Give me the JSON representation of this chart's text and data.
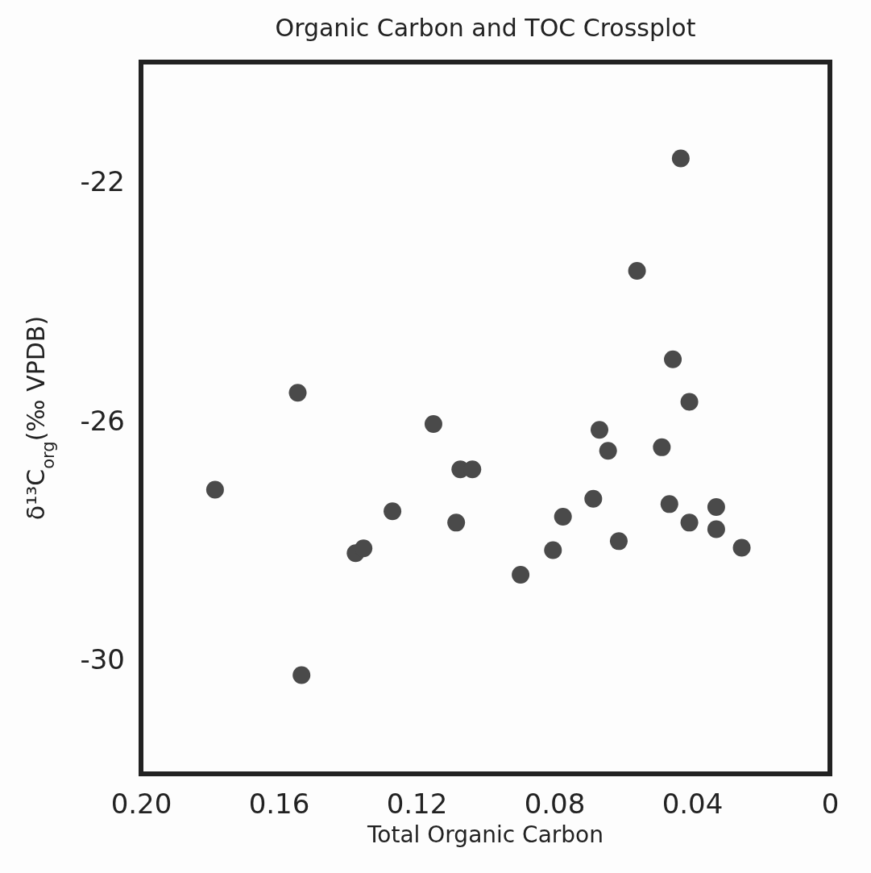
{
  "chart_data": {
    "type": "scatter",
    "title": "Organic Carbon and TOC Crossplot",
    "xlabel": "Total Organic Carbon",
    "ylabel": "δ¹³C$_{org}$(‰ VPDB)",
    "x": [
      0.1785,
      0.1545,
      0.1534,
      0.1377,
      0.1354,
      0.127,
      0.1151,
      0.1085,
      0.1073,
      0.1038,
      0.0898,
      0.0804,
      0.0775,
      0.0687,
      0.0669,
      0.0644,
      0.0613,
      0.056,
      0.0488,
      0.0466,
      0.0456,
      0.0433,
      0.0408,
      0.0408,
      0.033,
      0.033,
      0.0256
    ],
    "series": [
      {
        "color": "#4a4a4a",
        "values": [
          -27.15,
          -25.53,
          -30.25,
          -28.21,
          -28.13,
          -27.51,
          -26.05,
          -27.7,
          -26.81,
          -26.81,
          -28.57,
          -28.16,
          -27.6,
          -27.3,
          -26.15,
          -26.5,
          -28.01,
          -23.49,
          -26.44,
          -27.39,
          -24.97,
          -21.61,
          -25.68,
          -27.7,
          -27.44,
          -27.81,
          -28.12
        ]
      }
    ],
    "xlim": [
      0.2,
      0
    ],
    "xticks": [
      {
        "value": 0.2,
        "label": "0.20"
      },
      0.16,
      0.12,
      0.08,
      0.04,
      0
    ],
    "ylim": [
      -31.9,
      -20
    ],
    "yticks": [
      -22,
      -26,
      -30
    ],
    "marker": "circle",
    "grid": false
  }
}
